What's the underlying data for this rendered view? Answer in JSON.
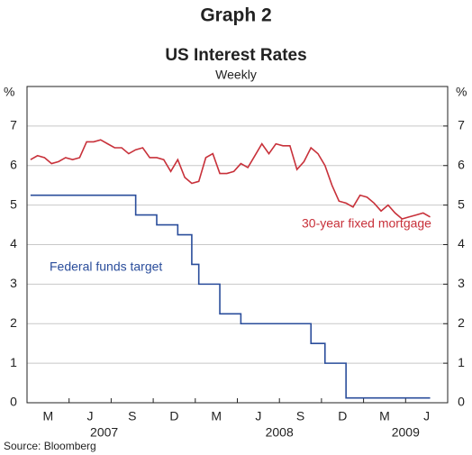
{
  "chart_data": {
    "type": "line",
    "title": "Graph 2",
    "subtitle": "US Interest Rates",
    "frequency_note": "Weekly",
    "source": "Source: Bloomberg",
    "y_unit": "%",
    "y2_unit": "%",
    "categories": [
      null,
      null,
      null,
      "M",
      null,
      null,
      null,
      null,
      null,
      "J",
      null,
      null,
      null,
      null,
      null,
      "S",
      null,
      null,
      null,
      null,
      null,
      "D",
      null,
      null,
      null,
      null,
      null,
      "M",
      null,
      null,
      null,
      null,
      null,
      "J",
      null,
      null,
      null,
      null,
      null,
      "S",
      null,
      null,
      null,
      null,
      null,
      "D",
      null,
      null,
      null,
      null,
      null,
      "M",
      null,
      null,
      null,
      null,
      null,
      "J",
      null,
      null
    ],
    "year_categories": [
      null,
      null,
      null,
      null,
      null,
      null,
      null,
      null,
      null,
      null,
      null,
      "2007",
      null,
      null,
      null,
      null,
      null,
      null,
      null,
      null,
      null,
      null,
      null,
      null,
      null,
      null,
      null,
      null,
      null,
      null,
      null,
      null,
      null,
      null,
      null,
      null,
      "2008",
      null,
      null,
      null,
      null,
      null,
      null,
      null,
      null,
      null,
      null,
      null,
      null,
      null,
      null,
      null,
      null,
      null,
      "2009",
      null,
      null,
      null,
      null,
      null
    ],
    "series": [
      {
        "name": "30-year fixed mortgage",
        "color": "#c8313a",
        "step": false,
        "values": [
          6.15,
          6.25,
          6.2,
          6.05,
          6.1,
          6.2,
          6.15,
          6.2,
          6.6,
          6.6,
          6.65,
          6.55,
          6.45,
          6.45,
          6.3,
          6.4,
          6.45,
          6.2,
          6.2,
          6.15,
          5.85,
          6.15,
          5.7,
          5.55,
          5.6,
          6.2,
          6.3,
          5.8,
          5.8,
          5.85,
          6.05,
          5.95,
          6.25,
          6.55,
          6.3,
          6.55,
          6.5,
          6.5,
          5.9,
          6.1,
          6.45,
          6.3,
          6.0,
          5.5,
          5.1,
          5.05,
          4.95,
          5.25,
          5.2,
          5.05,
          4.85,
          5.0,
          4.8,
          4.65,
          4.7,
          4.75,
          4.8,
          4.7,
          null,
          null
        ]
      },
      {
        "name": "Federal funds target",
        "color": "#2a4d9b",
        "step": true,
        "values": [
          5.25,
          5.25,
          5.25,
          5.25,
          5.25,
          5.25,
          5.25,
          5.25,
          5.25,
          5.25,
          5.25,
          5.25,
          5.25,
          5.25,
          5.25,
          4.75,
          4.75,
          4.75,
          4.5,
          4.5,
          4.5,
          4.25,
          4.25,
          3.5,
          3.0,
          3.0,
          3.0,
          2.25,
          2.25,
          2.25,
          2.0,
          2.0,
          2.0,
          2.0,
          2.0,
          2.0,
          2.0,
          2.0,
          2.0,
          2.0,
          1.5,
          1.5,
          1.0,
          1.0,
          1.0,
          0.12,
          0.12,
          0.12,
          0.12,
          0.12,
          0.12,
          0.12,
          0.12,
          0.12,
          0.12,
          0.12,
          0.12,
          0.12,
          null,
          null
        ]
      }
    ],
    "ylim": [
      0,
      8
    ],
    "yticks": [
      0,
      1,
      2,
      3,
      4,
      5,
      6,
      7
    ],
    "y2lim": [
      0,
      8
    ],
    "y2ticks": [
      0,
      1,
      2,
      3,
      4,
      5,
      6,
      7
    ],
    "grid": true
  }
}
